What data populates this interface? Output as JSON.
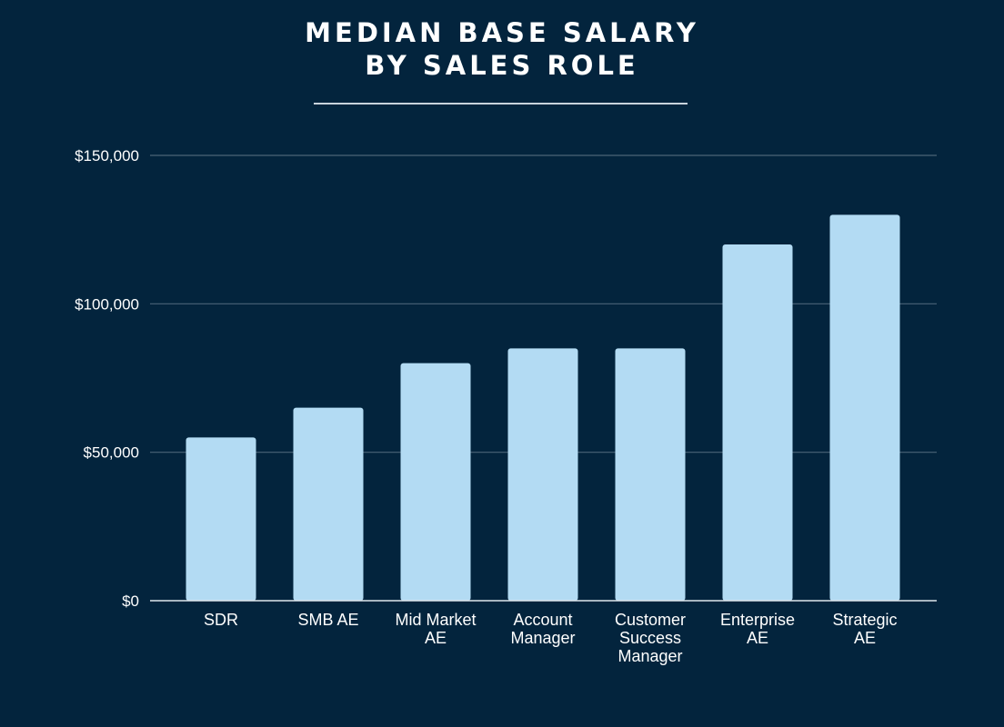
{
  "chart_data": {
    "type": "bar",
    "title_lines": [
      "MEDIAN BASE SALARY",
      "BY SALES ROLE"
    ],
    "categories": [
      [
        "SDR"
      ],
      [
        "SMB AE"
      ],
      [
        "Mid Market",
        "AE"
      ],
      [
        "Account",
        "Manager"
      ],
      [
        "Customer",
        "Success",
        "Manager"
      ],
      [
        "Enterprise",
        "AE"
      ],
      [
        "Strategic",
        "AE"
      ]
    ],
    "values": [
      55000,
      65000,
      80000,
      85000,
      85000,
      120000,
      130000
    ],
    "ylim": [
      0,
      150000
    ],
    "yticks": [
      0,
      50000,
      100000,
      150000
    ],
    "ytick_labels": [
      "$0",
      "$50,000",
      "$100,000",
      "$150,000"
    ],
    "grid": true,
    "colors": {
      "background": "#03243d",
      "bar": "#b3dbf3",
      "grid": "#4b6377",
      "axis": "#dfe6ec"
    }
  }
}
